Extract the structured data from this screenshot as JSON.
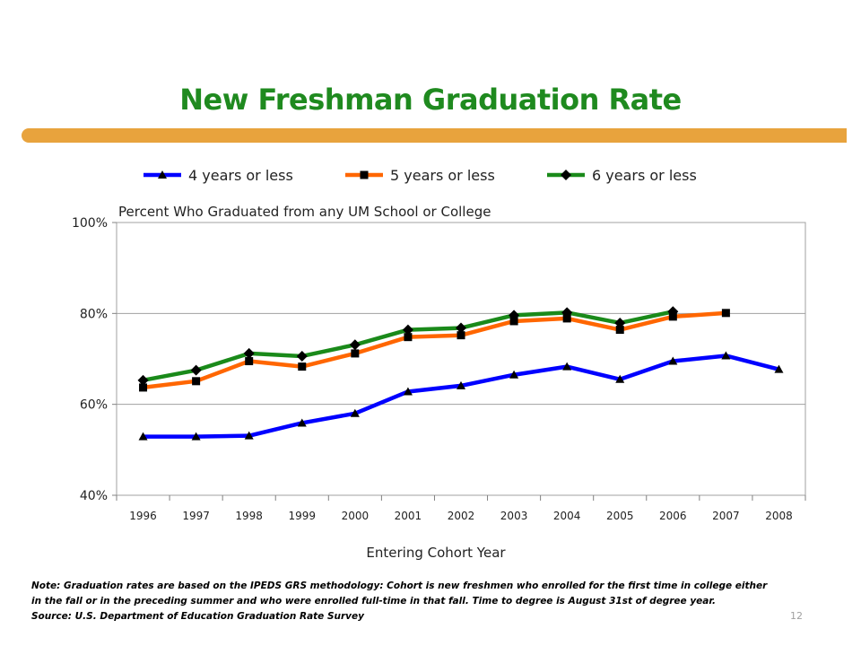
{
  "slide": {
    "title": "New Freshman Graduation Rate",
    "page_number": "12",
    "accent_color": "#e8a33d",
    "title_color": "#1f8a1f"
  },
  "note": {
    "line1": "Note:  Graduation rates are based on the IPEDS GRS methodology: Cohort is new freshmen who enrolled for the first time in college either",
    "line2": "in the fall or in the preceding summer and  who were enrolled full-time in that fall.  Time to degree is August 31st of degree year.",
    "line3": "Source:  U.S. Department of Education Graduation Rate Survey"
  },
  "chart_data": {
    "type": "line",
    "title": "Percent Who Graduated from any UM School or College",
    "xlabel": "Entering Cohort Year",
    "ylabel": "",
    "categories": [
      "1996",
      "1997",
      "1998",
      "1999",
      "2000",
      "2001",
      "2002",
      "2003",
      "2004",
      "2005",
      "2006",
      "2007",
      "2008"
    ],
    "ylim": [
      40,
      100
    ],
    "yticks": [
      40,
      60,
      80,
      100
    ],
    "ytick_labels": [
      "40%",
      "60%",
      "80%",
      "100%"
    ],
    "grid": "horizontal",
    "legend_position": "top",
    "series": [
      {
        "name": "4 years or less",
        "color": "#0000ff",
        "marker": "triangle",
        "values": [
          52.9,
          52.9,
          53.1,
          55.9,
          58.0,
          62.8,
          64.1,
          66.5,
          68.3,
          65.5,
          69.5,
          70.7,
          67.7
        ]
      },
      {
        "name": "5 years or less",
        "color": "#ff6600",
        "marker": "square",
        "values": [
          63.7,
          65.1,
          69.5,
          68.3,
          71.2,
          74.8,
          75.2,
          78.3,
          78.9,
          76.4,
          79.3,
          80.1,
          null
        ]
      },
      {
        "name": "6 years or less",
        "color": "#1a8a1a",
        "marker": "diamond",
        "values": [
          65.3,
          67.5,
          71.2,
          70.6,
          73.1,
          76.4,
          76.8,
          79.6,
          80.2,
          77.9,
          80.4,
          null,
          null
        ]
      }
    ]
  }
}
